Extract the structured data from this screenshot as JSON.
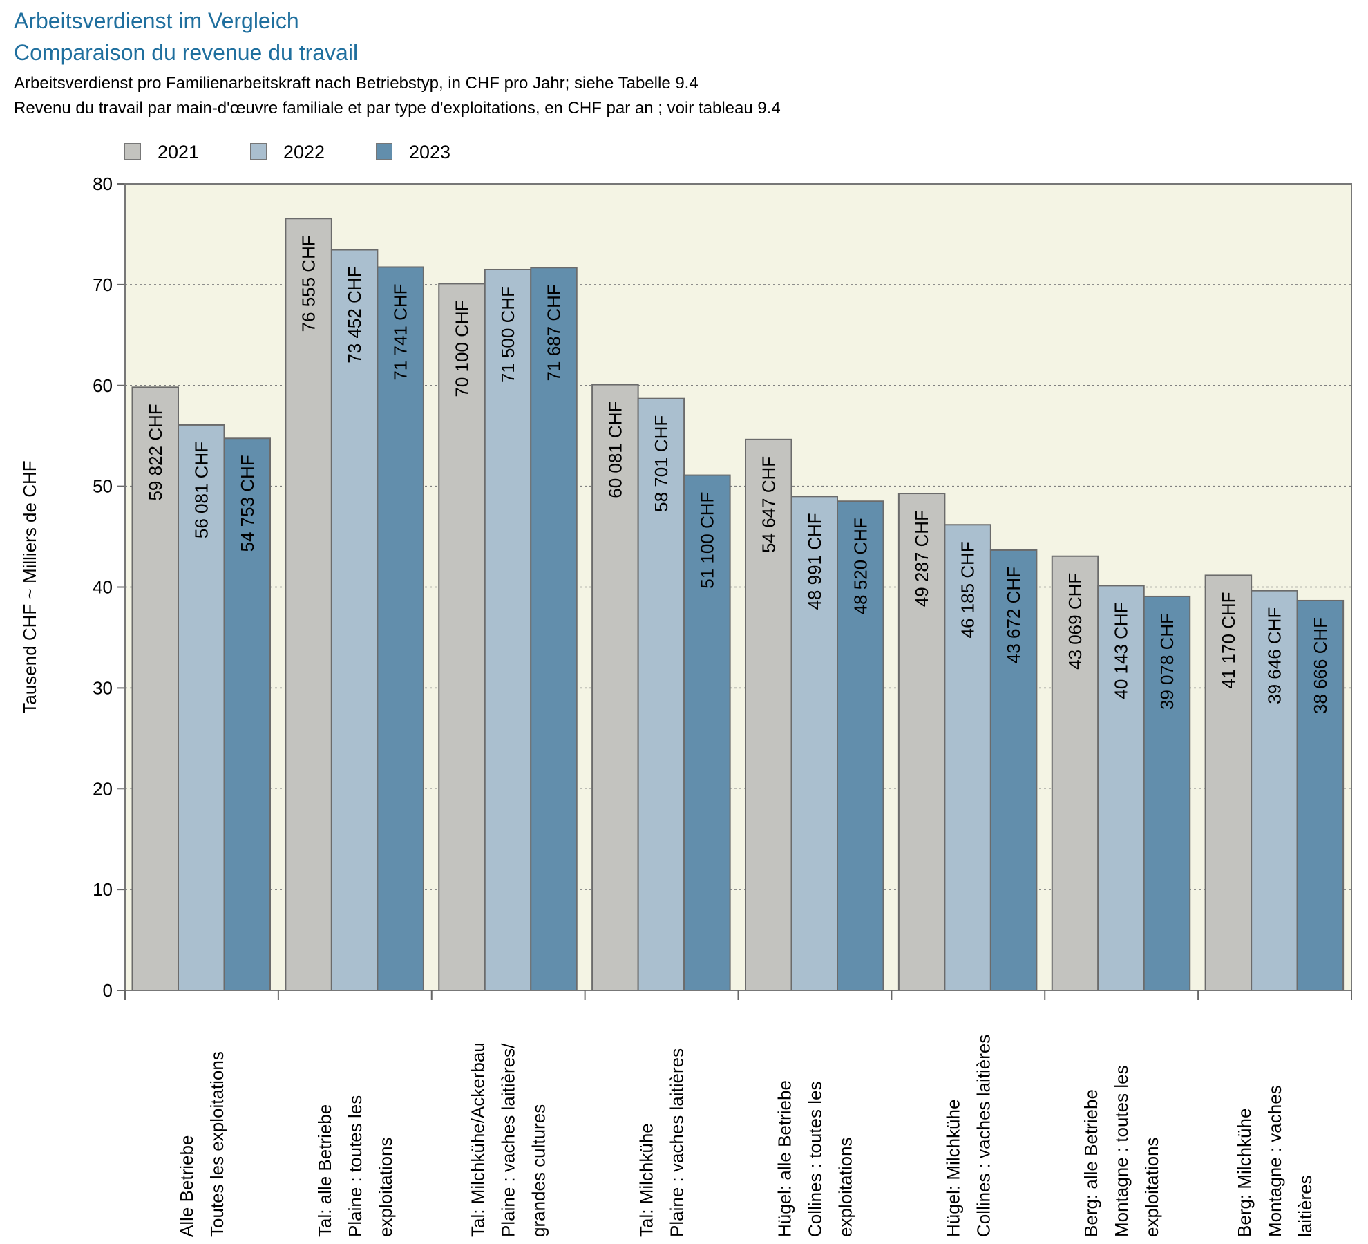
{
  "header": {
    "title_de": "Arbeitsverdienst im Vergleich",
    "title_fr": "Comparaison du revenue du travail",
    "subtitle_de": "Arbeitsverdienst pro Familienarbeitskraft nach Betriebstyp, in CHF pro Jahr; siehe Tabelle 9.4",
    "subtitle_fr": "Revenu du travail par main-d'œuvre familiale et par type d'exploitations, en CHF par an ; voir tableau 9.4"
  },
  "legend": [
    {
      "label": "2021",
      "color": "#c3c3bf"
    },
    {
      "label": "2022",
      "color": "#aabfcf"
    },
    {
      "label": "2023",
      "color": "#628eac"
    }
  ],
  "chart_data": {
    "type": "bar",
    "ylabel": "Tausend CHF   ~   Milliers de CHF",
    "ylim": [
      0,
      80
    ],
    "yticks": [
      0,
      10,
      20,
      30,
      40,
      50,
      60,
      70,
      80
    ],
    "grid": true,
    "legend_position": "top-left",
    "plot_background": "#f4f4e4",
    "categories": [
      [
        "Alle Betriebe",
        "Toutes les exploitations"
      ],
      [
        "Tal: alle Betriebe",
        "Plaine : toutes les",
        "exploitations"
      ],
      [
        "Tal:  Milchkühe/Ackerbau",
        "Plaine : vaches laitières/",
        "grandes cultures"
      ],
      [
        "Tal:  Milchkühe",
        "Plaine : vaches laitières"
      ],
      [
        "Hügel: alle Betriebe",
        "Collines : toutes les",
        "exploitations"
      ],
      [
        "Hügel: Milchkühe",
        "Collines : vaches laitières"
      ],
      [
        "Berg: alle Betriebe",
        "Montagne : toutes les",
        "exploitations"
      ],
      [
        "Berg: Milchkühe",
        "Montagne : vaches",
        "laitières"
      ]
    ],
    "series": [
      {
        "name": "2021",
        "values": [
          59.822,
          76.555,
          70.1,
          60.081,
          54.647,
          49.287,
          43.069,
          41.17
        ],
        "labels": [
          "59 822 CHF",
          "76 555 CHF",
          "70 100 CHF",
          "60 081 CHF",
          "54 647 CHF",
          "49 287 CHF",
          "43 069 CHF",
          "41 170 CHF"
        ]
      },
      {
        "name": "2022",
        "values": [
          56.081,
          73.452,
          71.5,
          58.701,
          48.991,
          46.185,
          40.143,
          39.646
        ],
        "labels": [
          "56 081 CHF",
          "73 452 CHF",
          "71 500 CHF",
          "58 701 CHF",
          "48 991 CHF",
          "46 185 CHF",
          "40 143 CHF",
          "39 646 CHF"
        ]
      },
      {
        "name": "2023",
        "values": [
          54.753,
          71.741,
          71.687,
          51.1,
          48.52,
          43.672,
          39.078,
          38.666
        ],
        "labels": [
          "54 753 CHF",
          "71 741 CHF",
          "71 687 CHF",
          "51 100 CHF",
          "48 520 CHF",
          "43 672 CHF",
          "39 078 CHF",
          "38 666 CHF"
        ]
      }
    ]
  }
}
